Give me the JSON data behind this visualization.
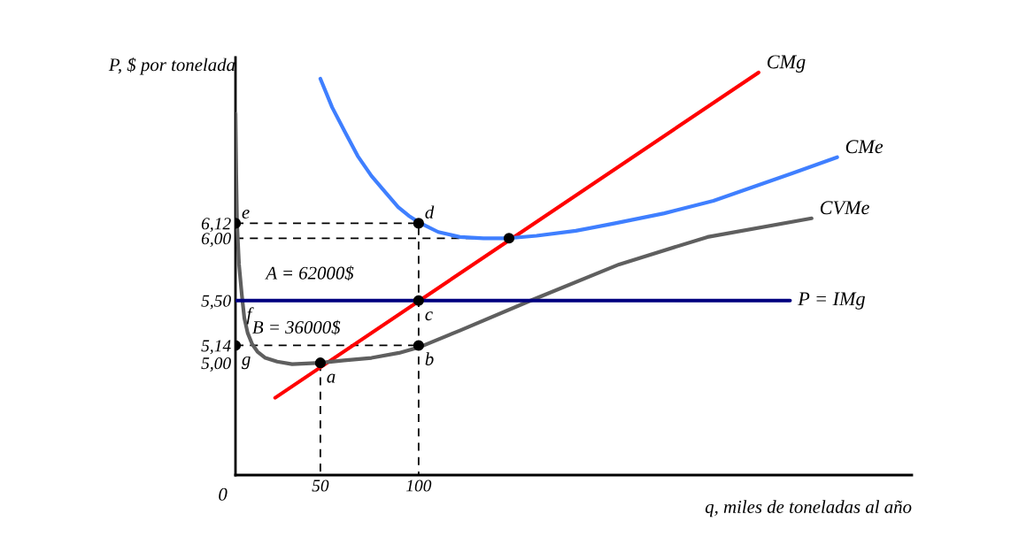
{
  "chart_data": {
    "type": "line",
    "xlabel": "q, miles de toneladas al año",
    "ylabel": "P, $ por tonelada",
    "xlim": [
      6.8,
      351
    ],
    "ylim": [
      4.1,
      7.45
    ],
    "xticks": [
      50,
      100
    ],
    "yticks": [
      {
        "value": 5.0,
        "label": "5,00"
      },
      {
        "value": 5.14,
        "label": "5,14"
      },
      {
        "value": 5.5,
        "label": "5,50"
      },
      {
        "value": 6.0,
        "label": "6,00"
      },
      {
        "value": 6.12,
        "label": "6,12"
      }
    ],
    "grid": false,
    "legend": false,
    "series": [
      {
        "type": "line",
        "line_style": "dashed",
        "color": "#000000",
        "x": [
          6.8,
          100,
          100
        ],
        "values": [
          6.12,
          6.12,
          4.1
        ]
      },
      {
        "type": "line",
        "line_style": "dashed",
        "color": "#000000",
        "x": [
          6.8,
          146
        ],
        "values": [
          6.0,
          6.0
        ]
      },
      {
        "type": "line",
        "line_style": "dashed",
        "color": "#000000",
        "x": [
          6.8,
          100
        ],
        "values": [
          5.14,
          5.14
        ]
      },
      {
        "type": "line",
        "line_style": "dashed",
        "color": "#000000",
        "x": [
          50,
          50
        ],
        "values": [
          5.0,
          4.1
        ]
      },
      {
        "name": "CMg",
        "line_style": "solid",
        "color": "#ff0000",
        "x": [
          27,
          273
        ],
        "values": [
          4.72,
          7.33
        ]
      },
      {
        "name": "CMe",
        "line_style": "solid",
        "color": "#3f7fff",
        "x": [
          50,
          56,
          62.6,
          69,
          76,
          83,
          89.6,
          95,
          101,
          110,
          121,
          133,
          146,
          160,
          180,
          200,
          225,
          250,
          270,
          290,
          313
        ],
        "values": [
          7.28,
          7.05,
          6.85,
          6.66,
          6.5,
          6.37,
          6.25,
          6.18,
          6.12,
          6.05,
          6.01,
          6.0,
          6.0,
          6.02,
          6.06,
          6.12,
          6.2,
          6.3,
          6.41,
          6.52,
          6.65
        ]
      },
      {
        "name": "CVMe",
        "line_style": "solid",
        "color": "#5f5f5f",
        "x": [
          6.8,
          7.2,
          7.6,
          8.6,
          10,
          11.3,
          13,
          15.3,
          18,
          22,
          28,
          35.6,
          50,
          62,
          76,
          90,
          101,
          121,
          157,
          202,
          247,
          300
        ],
        "values": [
          7.0,
          6.5,
          6.12,
          5.79,
          5.55,
          5.36,
          5.24,
          5.15,
          5.09,
          5.04,
          5.01,
          4.99,
          5.0,
          5.02,
          5.04,
          5.08,
          5.13,
          5.26,
          5.5,
          5.79,
          6.01,
          6.16
        ]
      },
      {
        "name": "P = IMg",
        "line_style": "solid",
        "color": "#00007f",
        "x": [
          6.8,
          289
        ],
        "values": [
          5.5,
          5.5
        ]
      },
      {
        "type": "scatter",
        "marker": "circle",
        "color": "#000000",
        "x": [
          6.8,
          100,
          146,
          100,
          6.8,
          100,
          50
        ],
        "values": [
          6.12,
          6.12,
          6.0,
          5.5,
          5.14,
          5.14,
          5.0
        ]
      }
    ],
    "annotations": [
      {
        "text": "e",
        "x": 6.8,
        "y": 6.12
      },
      {
        "text": "d",
        "x": 100,
        "y": 6.12
      },
      {
        "text": "f",
        "x": 6.8,
        "y": 5.5
      },
      {
        "text": "c",
        "x": 100,
        "y": 5.5
      },
      {
        "text": "g",
        "x": 6.8,
        "y": 5.14
      },
      {
        "text": "b",
        "x": 100,
        "y": 5.14
      },
      {
        "text": "a",
        "x": 50,
        "y": 5.0
      },
      "A = 62000$",
      "B = 36000$",
      "0"
    ]
  }
}
